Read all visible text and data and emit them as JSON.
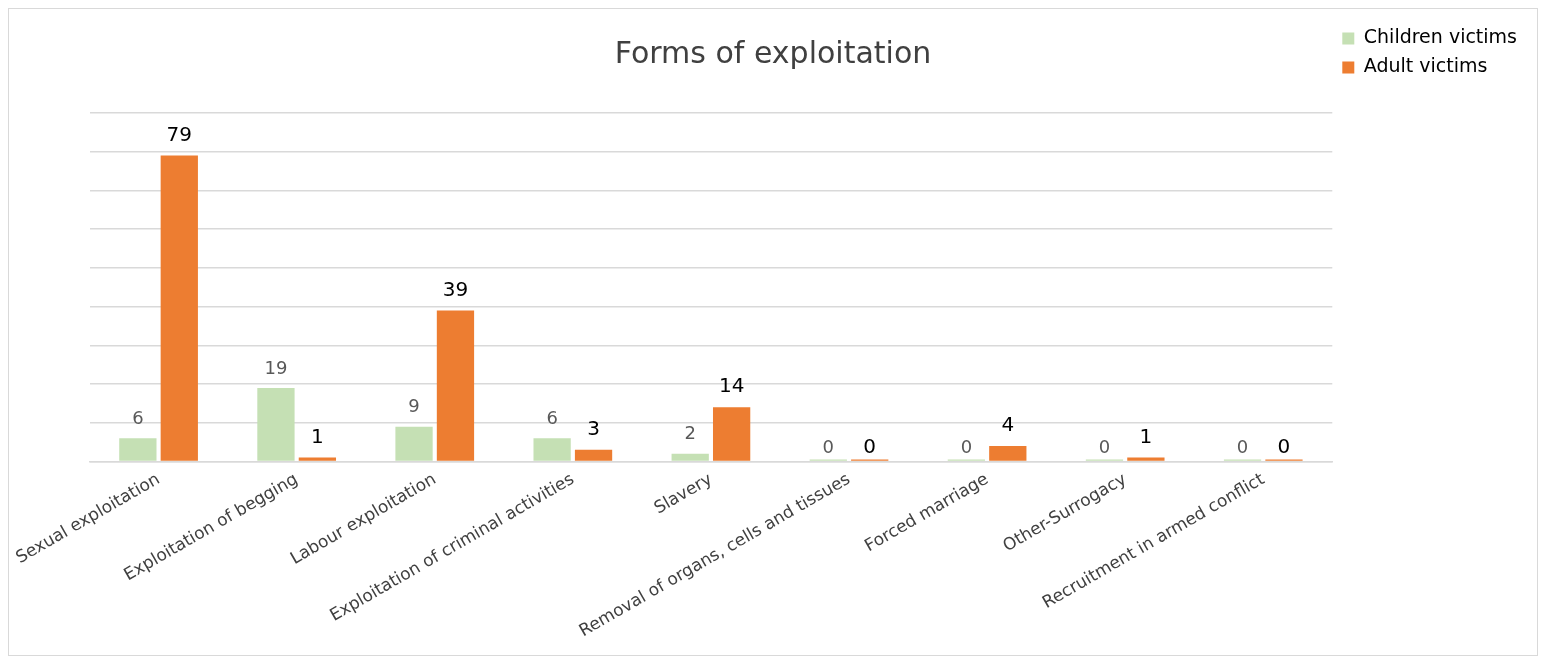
{
  "chart_data": {
    "type": "bar",
    "title": "Forms of exploitation",
    "categories": [
      "Sexual exploitation",
      "Exploitation of begging",
      "Labour exploitation",
      "Exploitation of criminal activities",
      "Slavery",
      "Removal of organs, cells and tissues",
      "Forced marriage",
      "Other-Surrogacy",
      "Recruitment in armed conflict"
    ],
    "series": [
      {
        "name": "Children victims",
        "color": "#c5e0b4",
        "values": [
          6,
          19,
          9,
          6,
          2,
          0,
          0,
          0,
          0
        ]
      },
      {
        "name": "Adult victims",
        "color": "#ed7d31",
        "values": [
          79,
          1,
          39,
          3,
          14,
          0,
          4,
          1,
          0
        ]
      }
    ],
    "ylim": [
      0,
      90
    ],
    "yticks": [
      {
        "value": 0,
        "label": null
      },
      {
        "value": 10,
        "label": null
      },
      {
        "value": 20,
        "label": null
      },
      {
        "value": 30,
        "label": null
      },
      {
        "value": 40,
        "label": null
      },
      {
        "value": 50,
        "label": null
      },
      {
        "value": 60,
        "label": null
      },
      {
        "value": 70,
        "label": null
      },
      {
        "value": 80,
        "label": null
      },
      {
        "value": 90,
        "label": null
      }
    ],
    "tick_labels": "x",
    "grid": "y",
    "legend": "top right",
    "data_labels": true
  }
}
